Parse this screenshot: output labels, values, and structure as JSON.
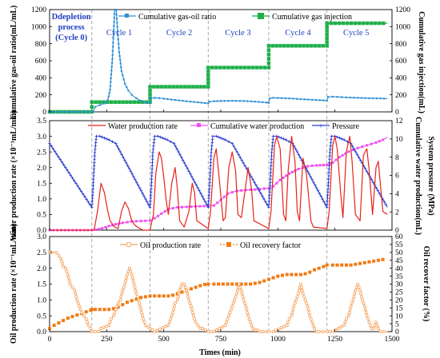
{
  "xaxis": {
    "label": "Times (min)",
    "ticks": [
      "0",
      "250",
      "500",
      "750",
      "1000",
      "1250",
      "1500"
    ],
    "tick_values": [
      0,
      250,
      500,
      750,
      1000,
      1250,
      1500
    ],
    "range": [
      0,
      1500
    ]
  },
  "dividers": [
    185,
    440,
    695,
    960,
    1215
  ],
  "cycle_labels": [
    {
      "text": "Ddepletion",
      "x": 95
    },
    {
      "text": "process",
      "x": 95
    },
    {
      "text": "(Cycle 0)",
      "x": 95
    },
    {
      "text": "Cycle 1",
      "x": 305
    },
    {
      "text": "Cycle 2",
      "x": 568
    },
    {
      "text": "Cycle 3",
      "x": 825
    },
    {
      "text": "Cycle 4",
      "x": 1088
    },
    {
      "text": "Cycle 5",
      "x": 1343
    }
  ],
  "colors": {
    "gor": "#2e8fd6",
    "gasinj": "#1faf4a",
    "water": "#e8231a",
    "cumwater": "#f050f0",
    "pressure": "#2a3fd0",
    "oilrate": "#f5a35f",
    "recovery": "#f07b14",
    "divider": "#a0a0a0"
  },
  "chart_data": [
    {
      "type": "line",
      "ylabel_left": "Cumulative gas-oil ratio(mL/mL)",
      "ylabel_right": "Cumulative gas injection(mL)",
      "yticks_left": [
        "0",
        "200",
        "400",
        "600",
        "800",
        "1000",
        "1200"
      ],
      "yticks_right": [
        "0",
        "200",
        "400",
        "600",
        "800",
        "1000",
        "1200"
      ],
      "ylim_left": [
        0,
        1200
      ],
      "ylim_right": [
        0,
        1200
      ],
      "series": [
        {
          "name": "Cumulative gas-oil ratio",
          "axis": "left",
          "x": [
            0,
            50,
            100,
            150,
            190,
            200,
            220,
            240,
            255,
            265,
            275,
            285,
            292,
            298,
            305,
            315,
            330,
            345,
            360,
            380,
            400,
            420,
            440,
            445,
            460,
            480,
            500,
            550,
            600,
            650,
            680,
            695,
            700,
            720,
            750,
            800,
            850,
            900,
            950,
            960,
            965,
            980,
            1000,
            1050,
            1100,
            1150,
            1200,
            1215,
            1220,
            1240,
            1260,
            1300,
            1350,
            1400,
            1450,
            1480
          ],
          "y": [
            0,
            0,
            0,
            0,
            0,
            60,
            80,
            100,
            140,
            260,
            620,
            1200,
            1190,
            950,
            700,
            480,
            330,
            250,
            200,
            160,
            130,
            110,
            100,
            160,
            165,
            162,
            155,
            140,
            125,
            112,
            104,
            100,
            120,
            125,
            128,
            130,
            128,
            120,
            110,
            105,
            160,
            165,
            163,
            158,
            150,
            142,
            135,
            132,
            175,
            178,
            176,
            170,
            165,
            160,
            158,
            155
          ]
        },
        {
          "name": "Cumulative gas injection",
          "axis": "right",
          "step": true,
          "x": [
            0,
            185,
            185,
            440,
            440,
            695,
            695,
            960,
            960,
            1215,
            1215,
            1480
          ],
          "y": [
            0,
            0,
            115,
            115,
            295,
            295,
            520,
            520,
            775,
            775,
            1040,
            1040
          ]
        }
      ],
      "legend": "top"
    },
    {
      "type": "line",
      "ylabel_left": "Water production rate (×10⁻¹mL/min)",
      "ylabel_right1": "Cumulative water production(mL)",
      "ylabel_right2": "System pressure (MPa)",
      "yticks_left": [
        "0.0",
        "0.5",
        "1.0",
        "1.5",
        "2.0",
        "2.5",
        "3.0",
        "3.5"
      ],
      "yticks_right": [
        "0",
        "2",
        "4",
        "6",
        "8",
        "10",
        "12"
      ],
      "ylim_left": [
        0,
        3.5
      ],
      "ylim_right": [
        0,
        12
      ],
      "series": [
        {
          "name": "Water production rate",
          "axis": "left",
          "x": [
            0,
            185,
            195,
            210,
            225,
            240,
            255,
            265,
            285,
            300,
            315,
            330,
            345,
            360,
            375,
            385,
            395,
            410,
            440,
            455,
            465,
            480,
            490,
            500,
            510,
            520,
            535,
            550,
            560,
            570,
            590,
            610,
            625,
            635,
            645,
            695,
            705,
            720,
            730,
            745,
            760,
            770,
            785,
            800,
            815,
            825,
            840,
            870,
            885,
            895,
            960,
            970,
            985,
            995,
            1010,
            1025,
            1035,
            1045,
            1060,
            1075,
            1085,
            1095,
            1110,
            1125,
            1145,
            1155,
            1215,
            1225,
            1240,
            1250,
            1260,
            1275,
            1285,
            1300,
            1315,
            1325,
            1340,
            1360,
            1375,
            1390,
            1400,
            1415,
            1430,
            1440,
            1450,
            1460,
            1480
          ],
          "y": [
            0,
            0,
            0,
            0.6,
            1.5,
            1.2,
            0.6,
            0.3,
            0.1,
            0.05,
            0.6,
            0.9,
            0.7,
            0.3,
            0.15,
            0.1,
            0.05,
            0,
            0,
            0.5,
            1.8,
            2.5,
            2.3,
            1.7,
            1.0,
            0.5,
            1.5,
            2.0,
            1.3,
            0.3,
            0.1,
            0.6,
            1.5,
            1.2,
            0.3,
            0.05,
            0.6,
            2.3,
            2.6,
            1.5,
            0.3,
            0.4,
            2.0,
            2.5,
            1.9,
            0.5,
            0.4,
            2.0,
            1.3,
            0.3,
            0.05,
            0.6,
            2.7,
            3.0,
            2.6,
            0.5,
            0.3,
            1.9,
            3.0,
            2.2,
            0.6,
            0.3,
            2.3,
            1.8,
            0.3,
            0.1,
            0.05,
            0.6,
            2.7,
            3.0,
            2.6,
            1.2,
            0.4,
            2.5,
            3.0,
            2.2,
            0.5,
            0.3,
            2.4,
            2.6,
            1.9,
            0.5,
            2.0,
            2.2,
            1.4,
            0.6,
            0.5
          ]
        },
        {
          "name": "Cumulative water production",
          "axis": "right",
          "x": [
            0,
            185,
            200,
            230,
            260,
            290,
            320,
            360,
            400,
            440,
            460,
            490,
            520,
            560,
            600,
            640,
            695,
            720,
            750,
            780,
            820,
            860,
            900,
            960,
            980,
            1010,
            1050,
            1090,
            1130,
            1170,
            1215,
            1240,
            1270,
            1310,
            1350,
            1390,
            1430,
            1460,
            1480
          ],
          "y": [
            0,
            0,
            0.05,
            0.2,
            0.45,
            0.65,
            0.8,
            0.95,
            1.0,
            1.05,
            1.3,
            1.8,
            2.3,
            2.5,
            2.55,
            2.6,
            2.65,
            2.7,
            3.3,
            4.0,
            4.3,
            4.4,
            4.45,
            4.6,
            4.8,
            5.5,
            6.2,
            6.7,
            7.0,
            7.1,
            7.15,
            7.4,
            8.0,
            8.6,
            9.0,
            9.3,
            9.6,
            9.9,
            10.2
          ]
        },
        {
          "name": "Pressure",
          "axis": "right",
          "x": [
            0,
            185,
            190,
            198,
            205,
            220,
            240,
            260,
            290,
            440,
            445,
            452,
            460,
            475,
            495,
            515,
            545,
            695,
            700,
            708,
            715,
            730,
            750,
            770,
            800,
            960,
            965,
            973,
            980,
            995,
            1015,
            1035,
            1065,
            1215,
            1220,
            1228,
            1235,
            1250,
            1270,
            1290,
            1320,
            1480
          ],
          "y": [
            9.5,
            2.5,
            4.5,
            8.5,
            10.3,
            10.3,
            10.1,
            9.9,
            9.5,
            2.5,
            4.5,
            8.5,
            10.3,
            10.3,
            10.1,
            9.9,
            9.5,
            2.5,
            4.5,
            8.5,
            10.3,
            10.3,
            10.1,
            9.9,
            9.5,
            2.5,
            4.5,
            8.5,
            10.3,
            10.3,
            10.1,
            9.9,
            9.5,
            2.5,
            4.5,
            8.5,
            10.3,
            10.3,
            10.1,
            9.9,
            9.5,
            2.5
          ]
        }
      ],
      "legend": "top"
    },
    {
      "type": "line",
      "ylabel_left": "Oil production rate (×10⁻¹mL/min)",
      "ylabel_right": "Oil recover factor (%)",
      "yticks_left": [
        "0.0",
        "0.5",
        "1.0",
        "1.5",
        "2.0",
        "2.5",
        "3.0"
      ],
      "yticks_right": [
        "0",
        "5",
        "10",
        "15",
        "20",
        "25",
        "30",
        "35",
        "40",
        "45",
        "50",
        "55",
        "60"
      ],
      "ylim_left": [
        0,
        3.0
      ],
      "ylim_right": [
        0,
        60
      ],
      "series": [
        {
          "name": "Oil production rate",
          "axis": "left",
          "x": [
            0,
            10,
            30,
            50,
            60,
            70,
            80,
            90,
            100,
            110,
            120,
            130,
            140,
            150,
            160,
            170,
            180,
            185,
            200,
            215,
            225,
            260,
            270,
            280,
            290,
            300,
            310,
            320,
            330,
            340,
            350,
            360,
            370,
            380,
            390,
            400,
            410,
            420,
            440,
            460,
            520,
            530,
            540,
            550,
            560,
            570,
            580,
            590,
            600,
            610,
            620,
            630,
            640,
            650,
            660,
            670,
            695,
            720,
            770,
            780,
            790,
            800,
            810,
            820,
            830,
            840,
            850,
            860,
            870,
            880,
            890,
            900,
            910,
            920,
            960,
            980,
            1040,
            1050,
            1060,
            1070,
            1080,
            1090,
            1100,
            1110,
            1120,
            1130,
            1140,
            1150,
            1160,
            1170,
            1180,
            1215,
            1240,
            1290,
            1300,
            1310,
            1320,
            1330,
            1340,
            1350,
            1360,
            1370,
            1380,
            1390,
            1400,
            1410,
            1420,
            1430,
            1440,
            1450,
            1480
          ],
          "y": [
            2.5,
            2.5,
            2.5,
            2.3,
            2.05,
            2.0,
            1.8,
            1.5,
            1.4,
            1.3,
            1.0,
            0.8,
            0.6,
            0.5,
            0.4,
            0.2,
            0.1,
            0,
            0,
            0,
            0.1,
            0.2,
            0.4,
            0.5,
            0.7,
            0.9,
            1.0,
            1.3,
            1.5,
            1.8,
            2.0,
            1.8,
            1.5,
            1.2,
            1.0,
            0.7,
            0.4,
            0.2,
            0.1,
            0,
            0.2,
            0.4,
            0.6,
            0.9,
            1.0,
            1.3,
            1.5,
            1.5,
            1.3,
            1.0,
            0.8,
            0.5,
            0.3,
            0.2,
            0.1,
            0.1,
            0,
            0,
            0.2,
            0.4,
            0.6,
            0.8,
            1.0,
            1.2,
            1.5,
            1.3,
            1.0,
            0.8,
            0.5,
            0.3,
            0.1,
            0.05,
            0.05,
            0,
            0,
            0,
            0.2,
            0.4,
            0.5,
            0.8,
            1.0,
            1.2,
            1.5,
            1.2,
            1.0,
            0.8,
            0.5,
            0.3,
            0.1,
            0,
            0,
            0,
            0,
            0.2,
            0.4,
            0.5,
            0.8,
            1.0,
            1.3,
            1.5,
            1.3,
            1.0,
            0.8,
            0.5,
            0.3,
            0.1,
            0.1,
            0.3,
            0.1,
            0,
            0
          ]
        },
        {
          "name": "Oil recovery factor",
          "axis": "right",
          "x": [
            0,
            20,
            40,
            60,
            80,
            100,
            120,
            140,
            160,
            180,
            185,
            200,
            220,
            240,
            260,
            280,
            300,
            320,
            340,
            360,
            380,
            400,
            420,
            440,
            460,
            480,
            500,
            520,
            540,
            560,
            580,
            600,
            620,
            640,
            660,
            680,
            695,
            720,
            760,
            800,
            840,
            880,
            920,
            960,
            980,
            1000,
            1020,
            1040,
            1060,
            1080,
            1100,
            1120,
            1140,
            1160,
            1180,
            1200,
            1215,
            1240,
            1280,
            1320,
            1360,
            1400,
            1440,
            1480
          ],
          "y": [
            2,
            4,
            5.5,
            7,
            8.5,
            9.5,
            10.5,
            11.5,
            12.5,
            13.5,
            14,
            14,
            14,
            14,
            14,
            14.5,
            15.5,
            17,
            18.5,
            19.5,
            20.5,
            21.5,
            22,
            22.5,
            22.5,
            22.5,
            22.5,
            22.5,
            23,
            24,
            25,
            26,
            27,
            28,
            29,
            29.8,
            30,
            30,
            30,
            30,
            30,
            30,
            31,
            33,
            34,
            35,
            35.5,
            36,
            36,
            36,
            36,
            36.5,
            37.5,
            39,
            40,
            41,
            42,
            42,
            42,
            42,
            43,
            44,
            45,
            46
          ]
        }
      ],
      "legend": "top"
    }
  ]
}
